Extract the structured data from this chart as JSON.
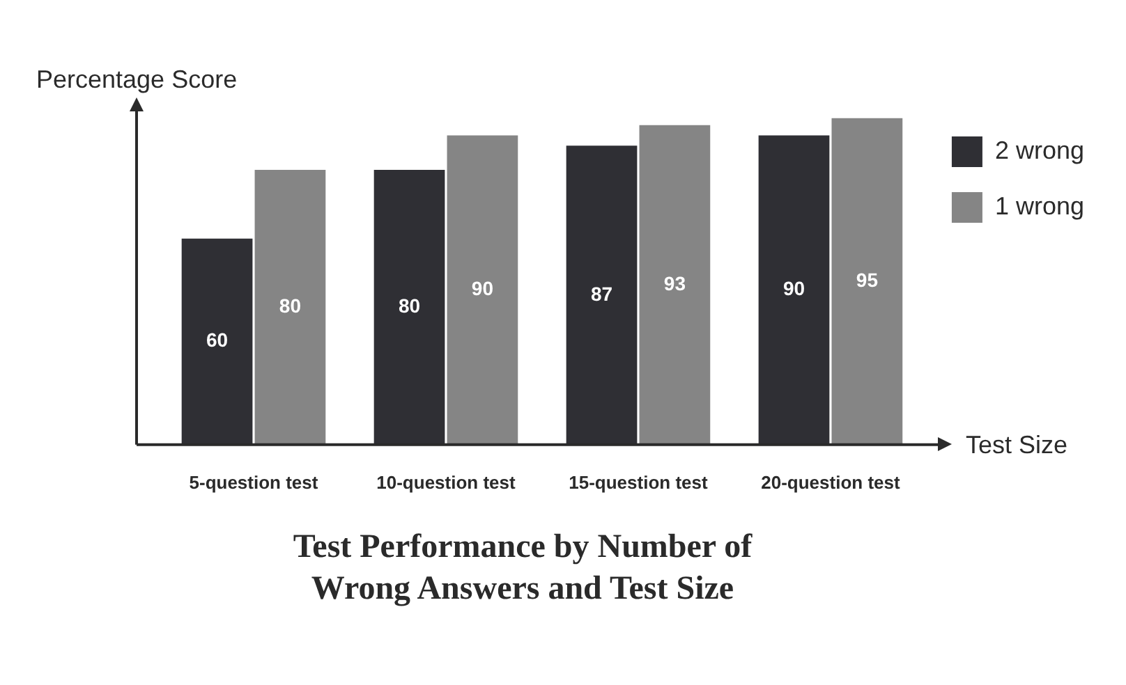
{
  "chart_data": {
    "type": "bar",
    "title": "Test Performance by Number of Wrong Answers and Test Size",
    "xlabel": "Test Size",
    "ylabel": "Percentage Score",
    "categories": [
      "5-question test",
      "10-question test",
      "15-question test",
      "20-question test"
    ],
    "series": [
      {
        "name": "2 wrong",
        "color": "#2f2f34",
        "values": [
          60,
          80,
          87,
          90
        ]
      },
      {
        "name": "1 wrong",
        "color": "#858585",
        "values": [
          80,
          90,
          93,
          95
        ]
      }
    ],
    "ylim": [
      0,
      97
    ],
    "data_labels": true,
    "legend": "top right",
    "grid": false
  }
}
